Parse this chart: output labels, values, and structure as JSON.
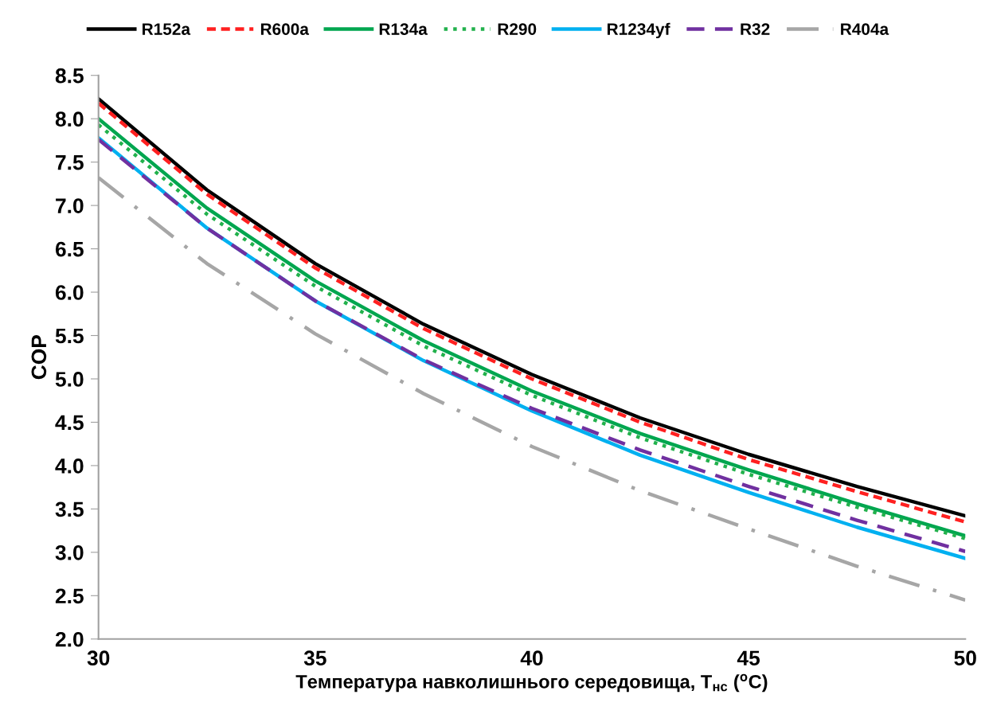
{
  "chart_data": {
    "type": "line",
    "xlabel": "Температура навколишнього середовища, T$_{нс}$ ($^{o}$C)",
    "ylabel": "COP",
    "x": [
      30,
      32.5,
      35,
      37.5,
      40,
      42.5,
      45,
      47.5,
      50
    ],
    "xlim": [
      30,
      50
    ],
    "xticks": [
      30,
      35,
      40,
      45,
      50
    ],
    "ylim": [
      2,
      8.5
    ],
    "yticks": [
      {
        "value": 2,
        "label": "2.0"
      },
      {
        "value": 2.5,
        "label": "2.5"
      },
      {
        "value": 3,
        "label": "3.0"
      },
      {
        "value": 3.5,
        "label": "3.5"
      },
      {
        "value": 4,
        "label": "4.0"
      },
      {
        "value": 4.5,
        "label": "4.5"
      },
      {
        "value": 5,
        "label": "5.0"
      },
      {
        "value": 5.5,
        "label": "5.5"
      },
      {
        "value": 6,
        "label": "6.0"
      },
      {
        "value": 6.5,
        "label": "6.5"
      },
      {
        "value": 7,
        "label": "7.0"
      },
      {
        "value": 7.5,
        "label": "7.5"
      },
      {
        "value": 8,
        "label": "8.0"
      },
      {
        "value": 8.5,
        "label": "8.5"
      }
    ],
    "grid": false,
    "legend": "top",
    "marker": "none",
    "series": [
      {
        "name": "R152a",
        "color": "#000000",
        "line_style": "solid",
        "values": [
          8.23,
          7.18,
          6.33,
          5.63,
          5.05,
          4.55,
          4.13,
          3.76,
          3.42
        ]
      },
      {
        "name": "R600a",
        "color": "#ff2020",
        "line_style": "dashed",
        "values": [
          8.18,
          7.13,
          6.28,
          5.58,
          5.0,
          4.5,
          4.07,
          3.7,
          3.35
        ]
      },
      {
        "name": "R134a",
        "color": "#00a64f",
        "line_style": "solid",
        "values": [
          8.0,
          6.97,
          6.13,
          5.44,
          4.86,
          4.37,
          3.95,
          3.56,
          3.19
        ]
      },
      {
        "name": "R290",
        "color": "#22b14c",
        "line_style": "dotted",
        "values": [
          7.93,
          6.9,
          6.07,
          5.38,
          4.81,
          4.32,
          3.9,
          3.52,
          3.16
        ]
      },
      {
        "name": "R1234yf",
        "color": "#00b0f0",
        "line_style": "solid",
        "values": [
          7.78,
          6.74,
          5.9,
          5.21,
          4.63,
          4.12,
          3.69,
          3.29,
          2.93
        ]
      },
      {
        "name": "R32",
        "color": "#7030a0",
        "line_style": "long_dashed",
        "values": [
          7.76,
          6.74,
          5.9,
          5.22,
          4.66,
          4.18,
          3.76,
          3.37,
          3.01
        ]
      },
      {
        "name": "R404a",
        "color": "#a6a6a6",
        "line_style": "dashdot",
        "values": [
          7.32,
          6.33,
          5.52,
          4.83,
          4.22,
          3.71,
          3.27,
          2.84,
          2.45
        ]
      }
    ]
  }
}
